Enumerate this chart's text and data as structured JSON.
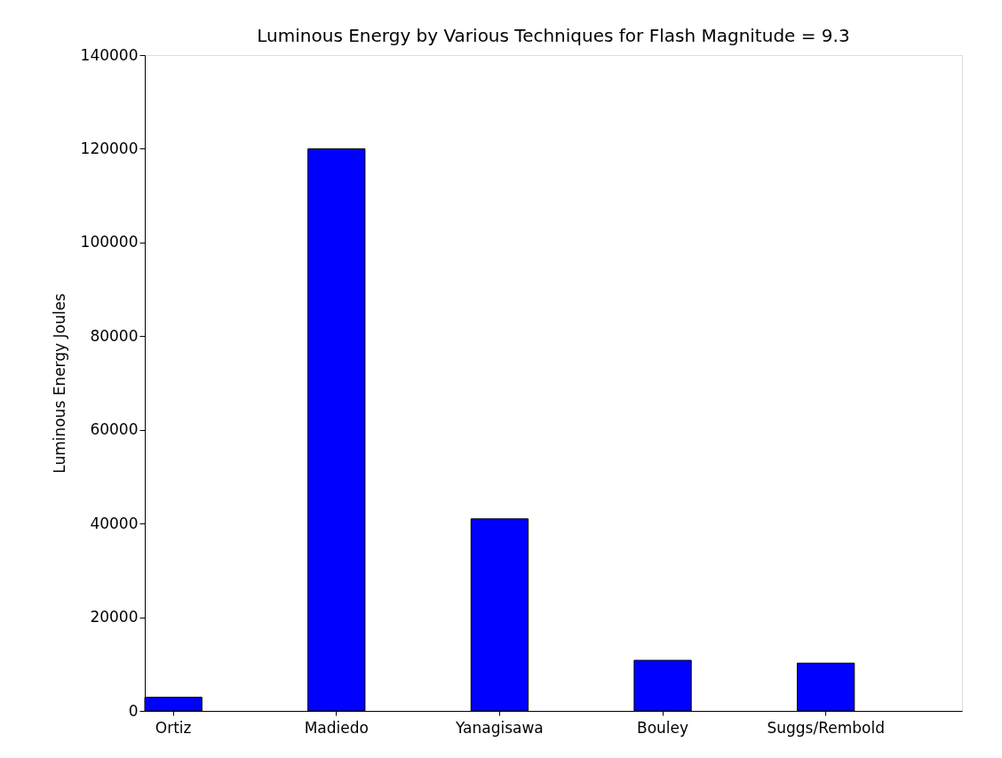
{
  "chart_data": {
    "type": "bar",
    "title": "Luminous Energy by Various Techniques for Flash Magnitude = 9.3",
    "ylabel": "Luminous Energy Joules",
    "categories": [
      "Ortiz",
      "Madiedo",
      "Yanagisawa",
      "Bouley",
      "Suggs/Rembold"
    ],
    "values": [
      2900,
      120000,
      41000,
      10800,
      10200
    ],
    "color": "#0000ff",
    "ylim": [
      0,
      140000
    ],
    "yticks": [
      0,
      20000,
      40000,
      60000,
      80000,
      100000,
      120000,
      140000
    ],
    "grid": false
  }
}
